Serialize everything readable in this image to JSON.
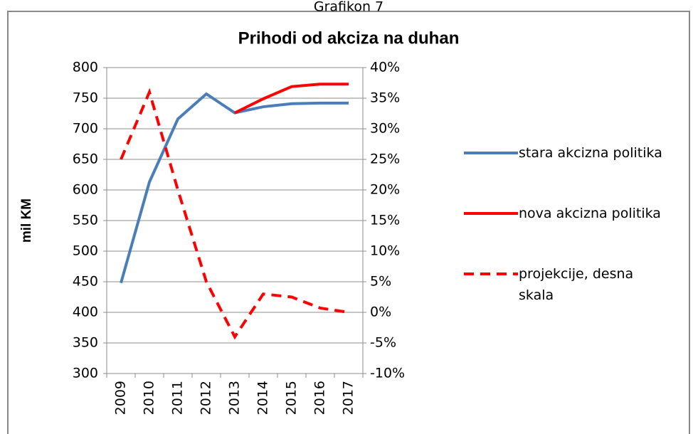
{
  "chart_data": {
    "type": "line",
    "figure_label": "Grafikon 7",
    "title": "Prihodi od akciza na duhan",
    "y_label": "mil KM",
    "categories": [
      "2009",
      "2010",
      "2011",
      "2012",
      "2013",
      "2014",
      "2015",
      "2016",
      "2017"
    ],
    "series": [
      {
        "name": "stara akcizna politika",
        "color": "#4a7ebb",
        "dash": false,
        "values": [
          448,
          613,
          716,
          757,
          726,
          736,
          741,
          742,
          742
        ]
      },
      {
        "name": "nova akcizna politika",
        "color": "#ff0000",
        "dash": false,
        "values": [
          null,
          null,
          null,
          null,
          726,
          749,
          769,
          773,
          773
        ]
      },
      {
        "name": "projekcije, desna skala",
        "color": "#ff0000",
        "dash": true,
        "axis": "y2",
        "values": [
          25,
          36,
          20,
          5,
          -4,
          3,
          2.5,
          0.7,
          0
        ]
      }
    ],
    "ylim": [
      300,
      800
    ],
    "yticks": [
      300,
      350,
      400,
      450,
      500,
      550,
      600,
      650,
      700,
      750,
      800
    ],
    "y2lim": [
      -10,
      40
    ],
    "y2ticks": [
      {
        "value": -10,
        "label": "-10%"
      },
      {
        "value": -5,
        "label": "-5%"
      },
      {
        "value": 0,
        "label": "0%"
      },
      {
        "value": 5,
        "label": "5%"
      },
      {
        "value": 10,
        "label": "10%"
      },
      {
        "value": 15,
        "label": "15%"
      },
      {
        "value": 20,
        "label": "20%"
      },
      {
        "value": 25,
        "label": "25%"
      },
      {
        "value": 30,
        "label": "30%"
      },
      {
        "value": 35,
        "label": "35%"
      },
      {
        "value": 40,
        "label": "40%"
      }
    ],
    "grid": true
  }
}
